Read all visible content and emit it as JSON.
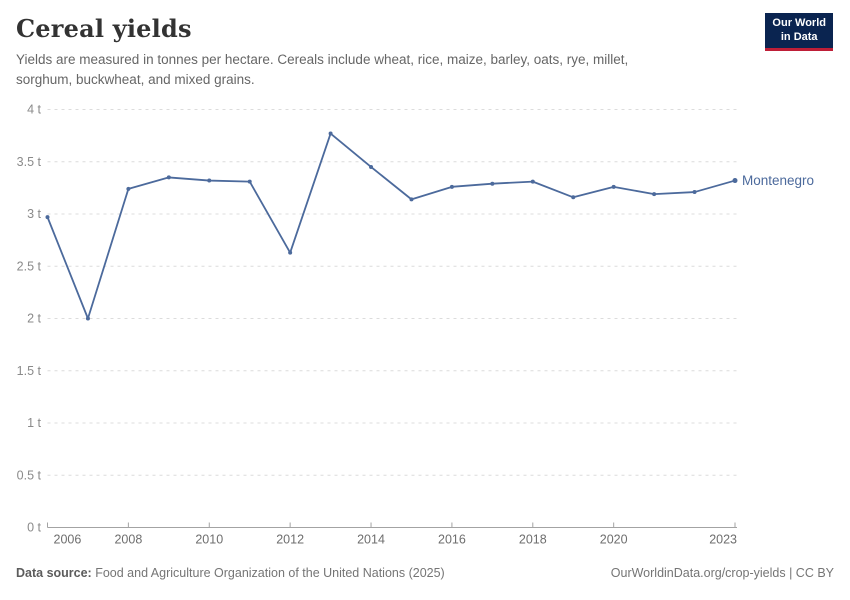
{
  "header": {
    "title": "Cereal yields",
    "subtitle_line1": "Yields are measured in tonnes per hectare. Cereals include wheat, rice, maize, barley, oats, rye, millet,",
    "subtitle_line2": "sorghum, buckwheat, and mixed grains."
  },
  "logo": {
    "line1": "Our World",
    "line2": "in Data",
    "bg_color": "#0a2450",
    "accent_color": "#be1e37"
  },
  "chart_data": {
    "type": "line",
    "title": "Cereal yields",
    "x": [
      2006,
      2007,
      2008,
      2009,
      2010,
      2011,
      2012,
      2013,
      2014,
      2015,
      2016,
      2017,
      2018,
      2019,
      2020,
      2021,
      2022,
      2023
    ],
    "series": [
      {
        "name": "Montenegro",
        "values": [
          2.97,
          2.0,
          3.24,
          3.35,
          3.32,
          3.31,
          2.63,
          3.77,
          3.45,
          3.14,
          3.26,
          3.29,
          3.31,
          3.16,
          3.26,
          3.19,
          3.21,
          3.32
        ],
        "color": "#4c6a9c"
      }
    ],
    "xlabel": "",
    "ylabel": "",
    "unit": "t",
    "ylim": [
      0,
      4
    ],
    "y_ticks": [
      0,
      0.5,
      1,
      1.5,
      2,
      2.5,
      3,
      3.5,
      4
    ],
    "y_tick_labels": [
      "0 t",
      "0.5 t",
      "1 t",
      "1.5 t",
      "2 t",
      "2.5 t",
      "3 t",
      "3.5 t",
      "4 t"
    ],
    "x_ticks": [
      2006,
      2008,
      2010,
      2012,
      2014,
      2016,
      2018,
      2020,
      2023
    ],
    "grid": "horizontal dashed",
    "legend_position": "end-of-line label",
    "colors": {
      "grid": "#dcdcdc",
      "axis": "#a3a3a3",
      "y_tick_text": "#8a8a8a",
      "x_tick_text": "#6e6e6e"
    }
  },
  "footer": {
    "source_label": "Data source:",
    "source_text": " Food and Agriculture Organization of the United Nations (2025)",
    "right_text": "OurWorldinData.org/crop-yields | CC BY"
  }
}
